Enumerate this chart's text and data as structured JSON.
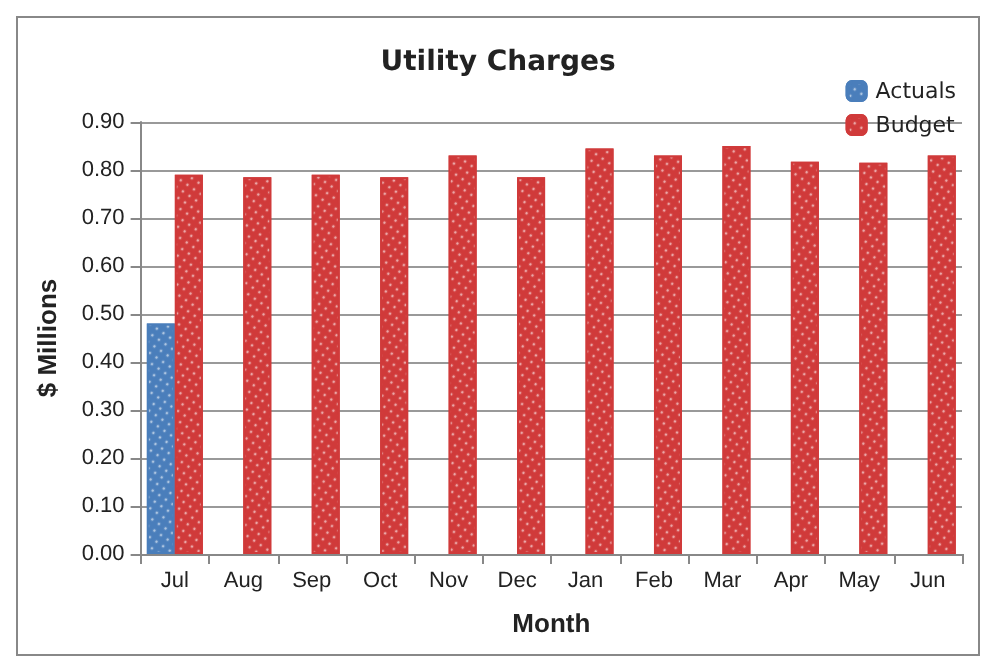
{
  "chart_data": {
    "type": "bar",
    "title": "Utility Charges",
    "xlabel": "Month",
    "ylabel": "$ Millions",
    "categories": [
      "Jul",
      "Aug",
      "Sep",
      "Oct",
      "Nov",
      "Dec",
      "Jan",
      "Feb",
      "Mar",
      "Apr",
      "May",
      "Jun"
    ],
    "series": [
      {
        "name": "Actuals",
        "color": "#4a7ebb",
        "values": [
          0.48,
          null,
          null,
          null,
          null,
          null,
          null,
          null,
          null,
          null,
          null,
          null
        ]
      },
      {
        "name": "Budget",
        "color": "#d03a3a",
        "values": [
          0.79,
          0.785,
          0.79,
          0.785,
          0.83,
          0.785,
          0.845,
          0.83,
          0.85,
          0.817,
          0.815,
          0.83
        ]
      }
    ],
    "ylim": [
      0,
      0.9
    ],
    "yticks": [
      {
        "value": 0,
        "label": "0.00"
      },
      {
        "value": 0.1,
        "label": "0.10"
      },
      {
        "value": 0.2,
        "label": "0.20"
      },
      {
        "value": 0.3,
        "label": "0.30"
      },
      {
        "value": 0.4,
        "label": "0.40"
      },
      {
        "value": 0.5,
        "label": "0.50"
      },
      {
        "value": 0.6,
        "label": "0.60"
      },
      {
        "value": 0.7,
        "label": "0.70"
      },
      {
        "value": 0.8,
        "label": "0.80"
      },
      {
        "value": 0.9,
        "label": "0.90"
      }
    ],
    "grid": "y",
    "legend": "top right"
  }
}
